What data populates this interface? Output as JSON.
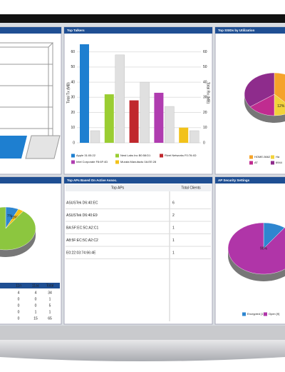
{
  "top_talkers": {
    "title": "Top Talkers",
    "y_label": "Total Tx (MB)",
    "y2_label": "Total Rx (MB)",
    "ylim": [
      0,
      65
    ],
    "yticks": [
      0,
      10,
      20,
      30,
      40,
      50,
      60
    ],
    "y2lim": [
      0,
      65
    ],
    "y2ticks": [
      0,
      10,
      20,
      30,
      40,
      50,
      60
    ],
    "categories": [
      "Apple 31:05:22",
      "Nest Labs Inc B0:58:D1",
      "Rivet Networks F0:76:4D",
      "Intel Corporate F8:6F:4D",
      "Murata Manufactu 0A:EE:28"
    ],
    "colors": [
      "#1e7fd0",
      "#9acd32",
      "#c0282d",
      "#b03cb0",
      "#f2c21a"
    ],
    "tx": [
      65,
      32,
      28,
      33,
      10
    ],
    "rx": [
      8,
      58,
      40,
      24,
      8
    ]
  },
  "top_ssids": {
    "title": "Top SSIDs by Utilization",
    "slices": [
      {
        "name": "HOME-5662",
        "value": 38,
        "label": "38%",
        "color": "#f5a32a"
      },
      {
        "name": "Ha",
        "value": 12,
        "label": "12%",
        "color": "#f2d23a"
      },
      {
        "name": "AT",
        "value": 15,
        "color": "#c02c90"
      },
      {
        "name": "6944",
        "value": 35,
        "color": "#8e2c8c"
      }
    ]
  },
  "top_aps": {
    "title": "Top APs Based On Active Assoc.",
    "headers": [
      "Top APs",
      "Total Clients"
    ],
    "rows": [
      [
        "ASUSTek D6:40:EC",
        6
      ],
      [
        "ASUSTek D6:40:E9",
        2
      ],
      [
        "BA:5F:EC:5C:A2:C1",
        1
      ],
      [
        "A8:5F:EC:5C:A2:C2",
        1
      ],
      [
        "E0:22:03:74:66:4E",
        1
      ]
    ]
  },
  "ap_security": {
    "title": "AP Security Settings",
    "slices": [
      {
        "name": "Encrypted [1]",
        "value": 10,
        "color": "#2e86d0"
      },
      {
        "name": "Open [9]",
        "value": 90,
        "label": "90%",
        "color": "#b035a8"
      }
    ]
  },
  "clients_left": {
    "slices": [
      {
        "value": 7,
        "label": "7%",
        "color": "#2e86d0"
      },
      {
        "value": 3,
        "label": "(3%)",
        "color": "#f2c21a"
      },
      {
        "value": 90,
        "color": "#8cc63f"
      }
    ],
    "headers": [
      "11n",
      "11ac",
      "Total"
    ],
    "rows": [
      [
        "4",
        "4",
        "34"
      ],
      [
        "0",
        "0",
        "1"
      ],
      [
        "0",
        "0",
        "5"
      ],
      [
        "0",
        "1",
        "1"
      ],
      [
        "0",
        "15",
        "65"
      ]
    ]
  }
}
